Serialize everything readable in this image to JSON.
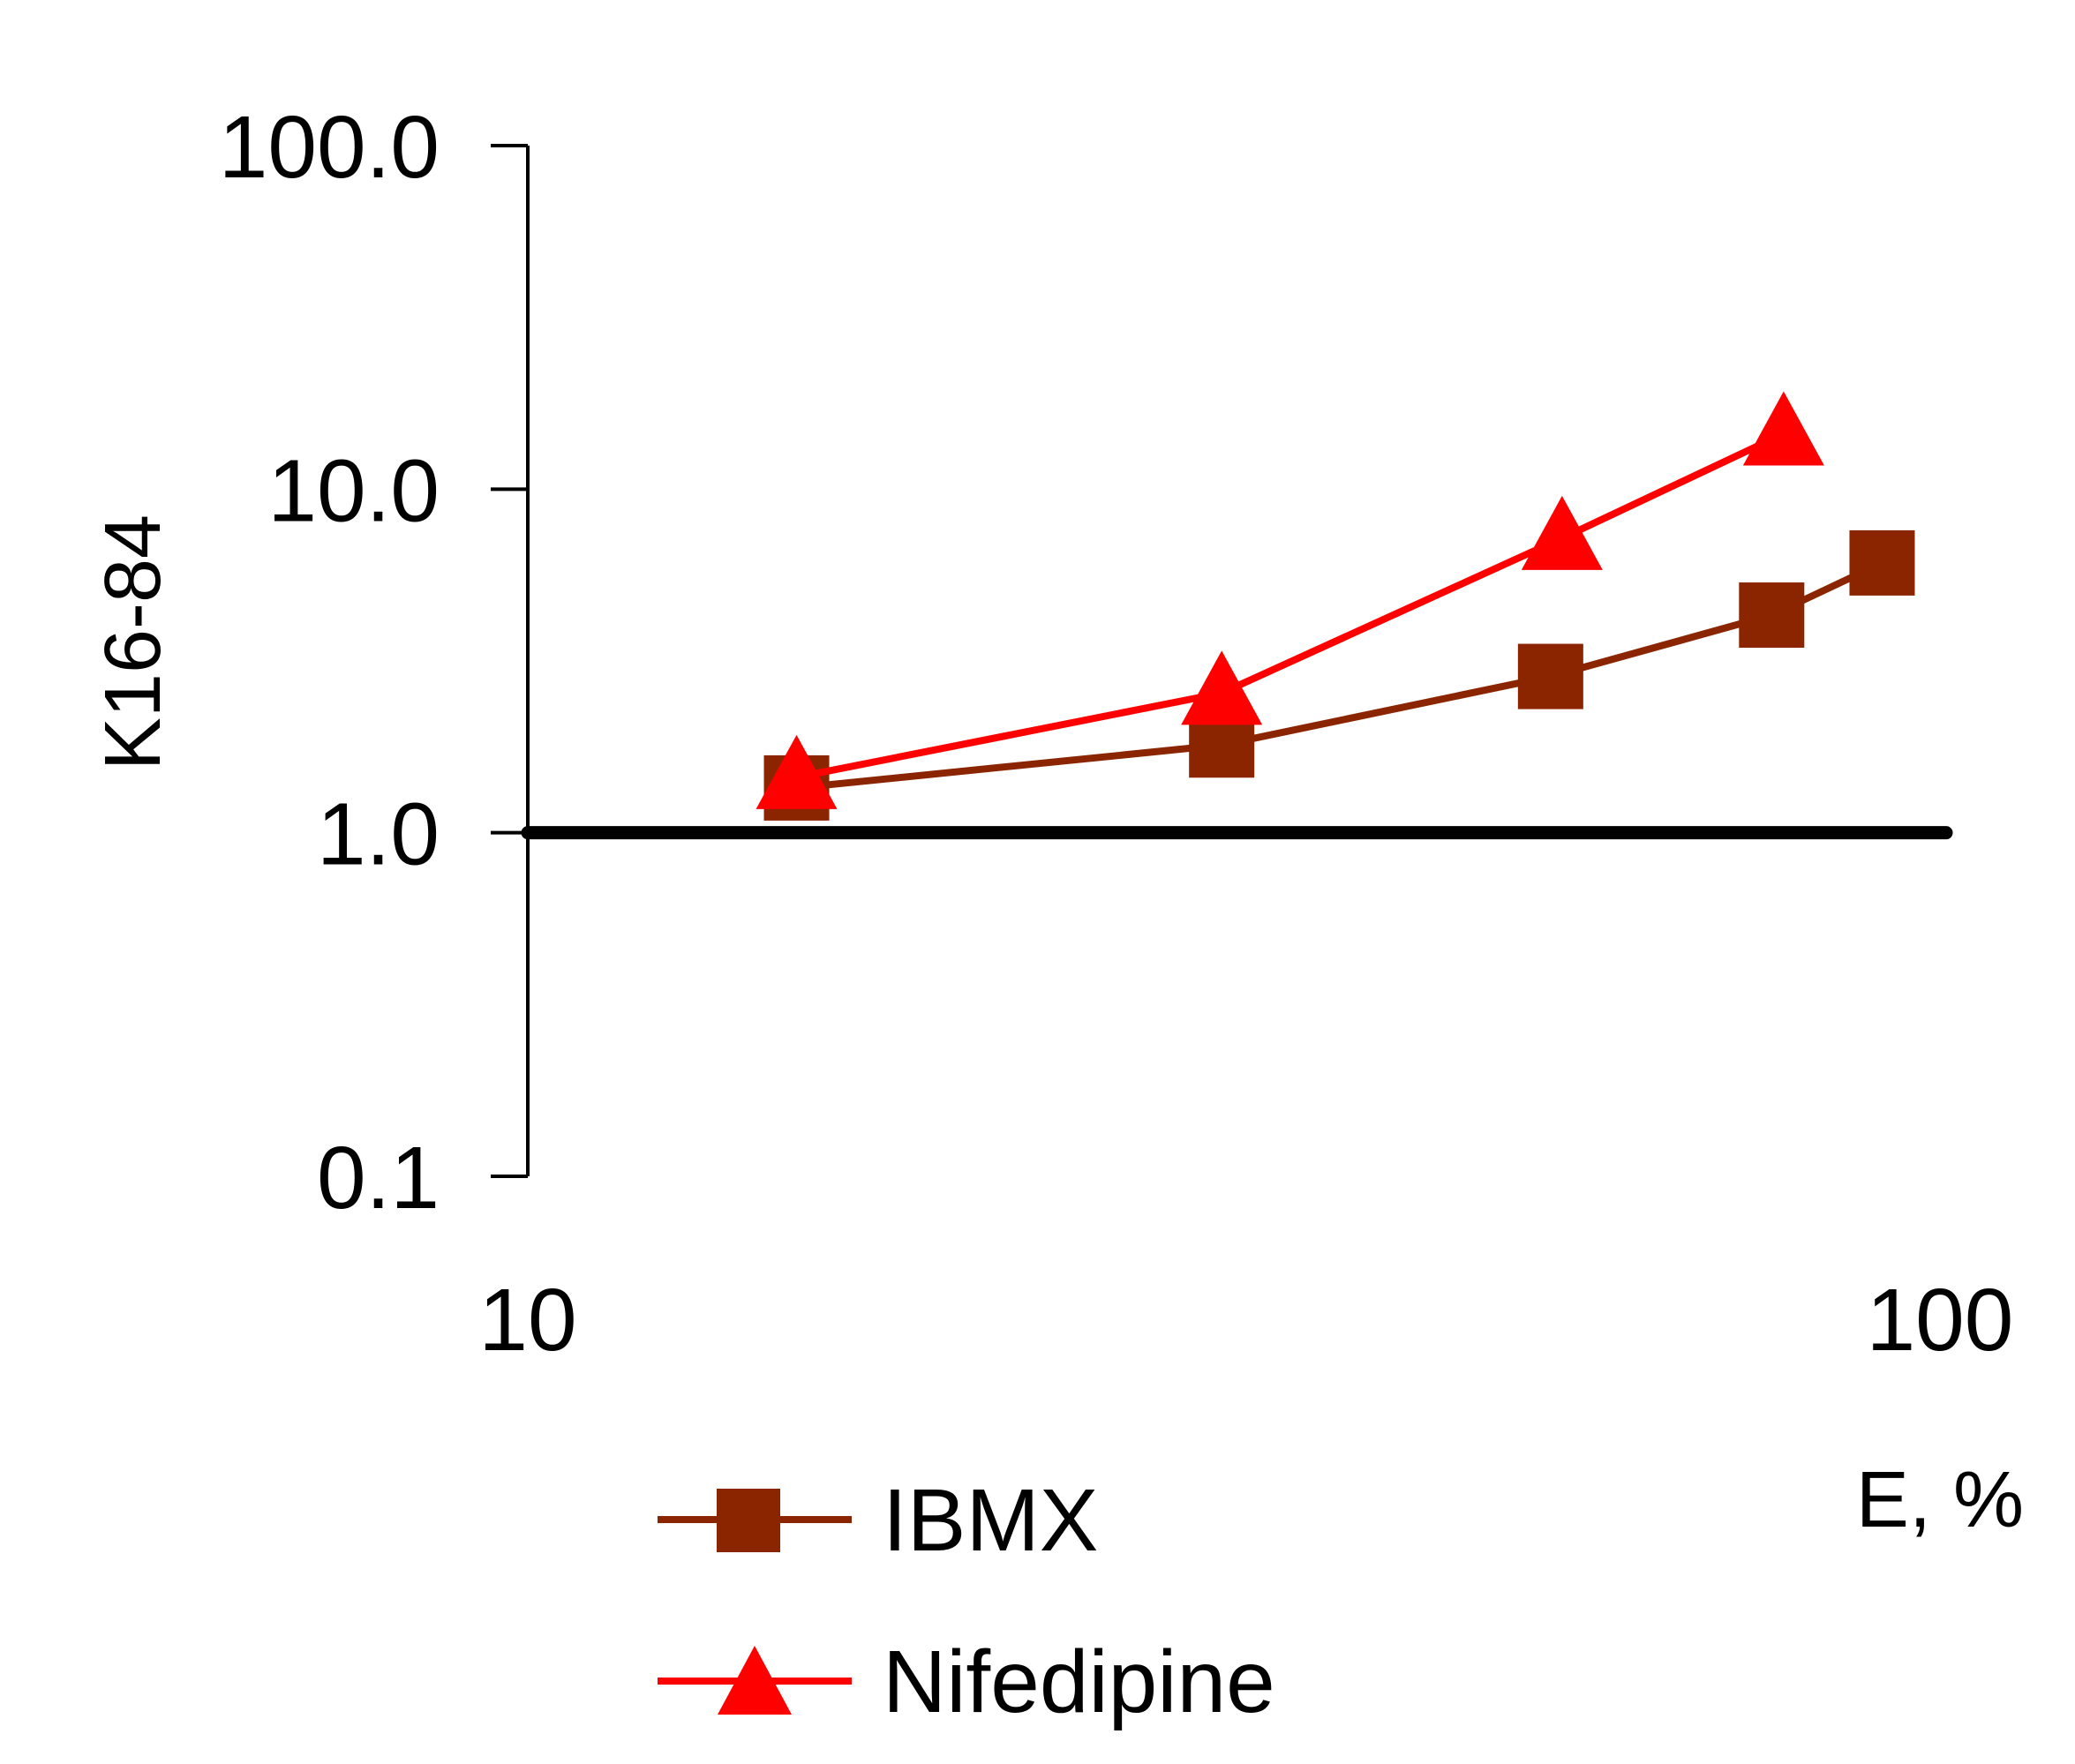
{
  "chart_data": {
    "type": "line",
    "xlabel": "E, %",
    "ylabel": "K16-84",
    "x_scale": "log",
    "y_scale": "log",
    "xlim": [
      10,
      100
    ],
    "ylim": [
      0.1,
      100
    ],
    "x_ticks": [
      "10",
      "100"
    ],
    "y_ticks": [
      "100.0",
      "10.0",
      "1.0",
      "0.1"
    ],
    "y_tick_values": [
      100,
      10,
      1,
      0.1
    ],
    "x_tick_values": [
      10,
      100
    ],
    "reference_line": {
      "y": 1.0,
      "x_from": 10,
      "x_to": 100,
      "color": "#000000"
    },
    "grid": false,
    "legend_position": "bottom-left",
    "series": [
      {
        "name": "IBMX",
        "color": "#8B2500",
        "marker": "square",
        "x": [
          15.5,
          31,
          53,
          76,
          91
        ],
        "y": [
          1.35,
          1.8,
          2.85,
          4.3,
          6.1
        ]
      },
      {
        "name": "Nifedipine",
        "color": "#FF0000",
        "marker": "triangle",
        "x": [
          15.5,
          31,
          54,
          77.5
        ],
        "y": [
          1.45,
          2.55,
          7.2,
          14.5
        ]
      }
    ]
  }
}
